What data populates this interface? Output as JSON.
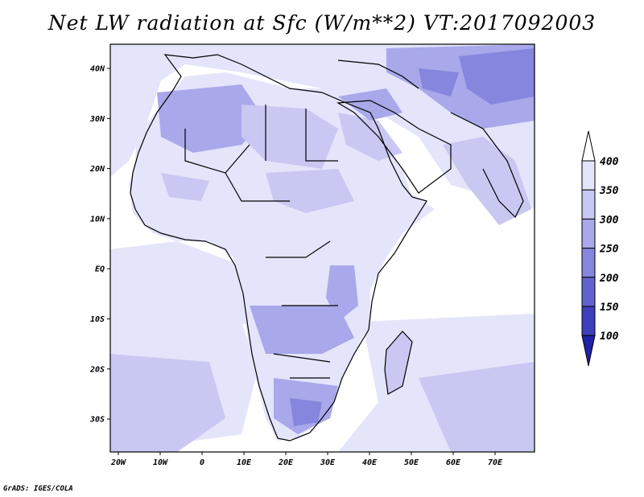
{
  "title": "Net LW radiation at Sfc (W/m**2) VT:2017092003",
  "credit": "GrADS: IGES/COLA",
  "map": {
    "x_ticks": [
      "20W",
      "10W",
      "0",
      "10E",
      "20E",
      "30E",
      "40E",
      "50E",
      "60E",
      "70E"
    ],
    "y_ticks": [
      "40N",
      "30N",
      "20N",
      "10N",
      "EQ",
      "10S",
      "20S",
      "30S"
    ]
  },
  "colorbar": {
    "levels": [
      "400",
      "350",
      "300",
      "250",
      "200",
      "150",
      "100"
    ],
    "colors": [
      "#ffffff",
      "#e4e4fb",
      "#c8c8f2",
      "#a8a8ea",
      "#8686de",
      "#6262cf",
      "#3e3ebf",
      "#2020aa"
    ]
  }
}
